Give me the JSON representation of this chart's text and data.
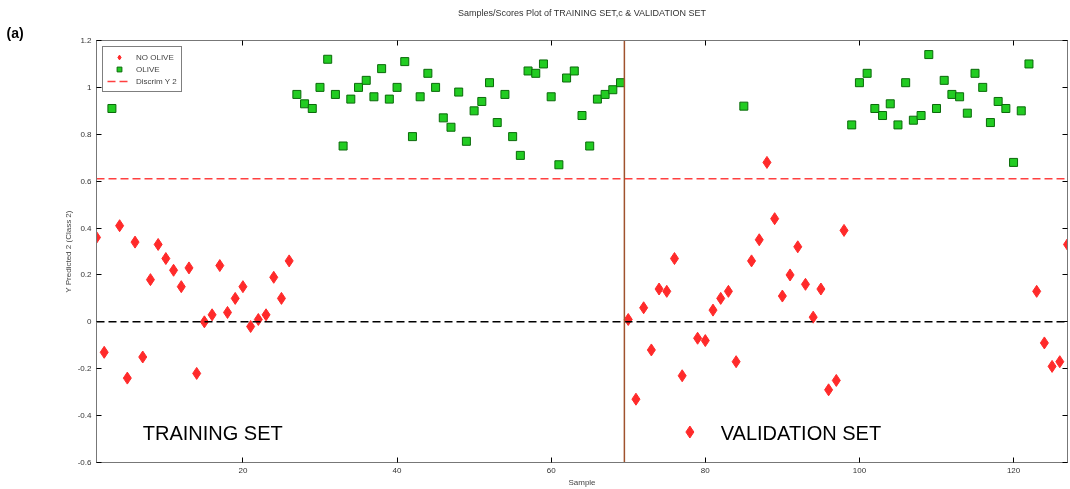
{
  "chart_data": {
    "type": "scatter",
    "title": "Samples/Scores Plot of TRAINING SET,c & VALIDATION SET",
    "xlabel": "Sample",
    "ylabel": "Y Predicted 2 (Class 2)",
    "xlim": [
      1,
      127
    ],
    "ylim": [
      -0.6,
      1.2
    ],
    "xticks": [
      20,
      40,
      60,
      80,
      100,
      120
    ],
    "yticks": [
      -0.6,
      -0.4,
      -0.2,
      0,
      0.2,
      0.4,
      0.6,
      0.8,
      1,
      1.2
    ],
    "grid": false,
    "legend": "top left",
    "series": [
      {
        "name": "NO OLIVE",
        "color": "#ff2a2a",
        "marker": "diamond",
        "x": [
          1,
          2,
          4,
          5,
          6,
          7,
          8,
          9,
          10,
          11,
          12,
          13,
          14,
          15,
          16,
          17,
          18,
          19,
          20,
          21,
          22,
          23,
          24,
          25,
          26,
          70,
          71,
          72,
          73,
          74,
          75,
          76,
          77,
          78,
          79,
          80,
          81,
          82,
          83,
          84,
          86,
          87,
          88,
          89,
          90,
          91,
          92,
          93,
          94,
          95,
          96,
          97,
          98,
          123,
          124,
          125,
          126,
          127
        ],
        "values": [
          0.36,
          -0.13,
          0.41,
          -0.24,
          0.34,
          -0.15,
          0.18,
          0.33,
          0.27,
          0.22,
          0.15,
          0.23,
          -0.22,
          0.0,
          0.03,
          0.24,
          0.04,
          0.1,
          0.15,
          -0.02,
          0.01,
          0.03,
          0.19,
          0.1,
          0.26,
          0.01,
          -0.33,
          0.06,
          -0.12,
          0.14,
          0.13,
          0.27,
          -0.23,
          -0.47,
          -0.07,
          -0.08,
          0.05,
          0.1,
          0.13,
          -0.17,
          0.26,
          0.35,
          0.68,
          0.44,
          0.11,
          0.2,
          0.32,
          0.16,
          0.02,
          0.14,
          -0.29,
          -0.25,
          0.39,
          0.13,
          -0.09,
          -0.19,
          -0.17,
          0.33
        ]
      },
      {
        "name": "OLIVE",
        "color": "#22cc22",
        "marker": "square",
        "x": [
          3,
          27,
          28,
          29,
          30,
          31,
          32,
          33,
          34,
          35,
          36,
          37,
          38,
          39,
          40,
          41,
          42,
          43,
          44,
          45,
          46,
          47,
          48,
          49,
          50,
          51,
          52,
          53,
          54,
          55,
          56,
          57,
          58,
          59,
          60,
          61,
          62,
          63,
          64,
          65,
          66,
          67,
          68,
          69,
          85,
          99,
          100,
          101,
          102,
          103,
          104,
          105,
          106,
          107,
          108,
          109,
          110,
          111,
          112,
          113,
          114,
          115,
          116,
          117,
          118,
          119,
          120,
          121,
          122
        ],
        "values": [
          0.91,
          0.97,
          0.93,
          0.91,
          1.0,
          1.12,
          0.97,
          0.75,
          0.95,
          1.0,
          1.03,
          0.96,
          1.08,
          0.95,
          1.0,
          1.11,
          0.79,
          0.96,
          1.06,
          1.0,
          0.87,
          0.83,
          0.98,
          0.77,
          0.9,
          0.94,
          1.02,
          0.85,
          0.97,
          0.79,
          0.71,
          1.07,
          1.06,
          1.1,
          0.96,
          0.67,
          1.04,
          1.07,
          0.88,
          0.75,
          0.95,
          0.97,
          0.99,
          1.02,
          0.92,
          0.84,
          1.02,
          1.06,
          0.91,
          0.88,
          0.93,
          0.84,
          1.02,
          0.86,
          0.88,
          1.14,
          0.91,
          1.03,
          0.97,
          0.96,
          0.89,
          1.06,
          1.0,
          0.85,
          0.94,
          0.91,
          0.68,
          0.9,
          1.1
        ]
      }
    ],
    "ref_lines": [
      {
        "axis": "y",
        "value": 0.61,
        "label": "Discrim Y 2",
        "color": "#ff4040",
        "line_style": "dashed"
      },
      {
        "axis": "y",
        "value": 0,
        "label": null,
        "color": "#000000",
        "line_style": "dashed"
      },
      {
        "axis": "x",
        "value": 69.5,
        "label": null,
        "color": "#a0522d",
        "line_style": "solid"
      }
    ],
    "annotations": [
      "(a)",
      "TRAINING SET",
      "VALIDATION SET"
    ]
  }
}
